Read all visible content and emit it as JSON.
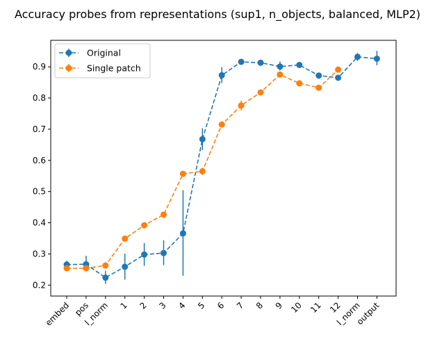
{
  "colors": {
    "original": "#1f77b4",
    "single_patch": "#ff7f0e",
    "axis": "#000000",
    "legend_border": "#cccccc"
  },
  "chart_data": {
    "type": "line",
    "title": "Accuracy probes from representations (sup1, n_objects, balanced, MLP2)",
    "xlabel": "",
    "ylabel": "",
    "categories": [
      "embed",
      "pos",
      "l_norm",
      "1",
      "2",
      "3",
      "4",
      "5",
      "6",
      "7",
      "8",
      "9",
      "10",
      "11",
      "12",
      "l_norm",
      "output"
    ],
    "ylim": [
      0.165,
      0.985
    ],
    "yticks": [
      0.2,
      0.3,
      0.4,
      0.5,
      0.6,
      0.7,
      0.8,
      0.9
    ],
    "ytick_labels": [
      "0.2",
      "0.3",
      "0.4",
      "0.5",
      "0.6",
      "0.7",
      "0.8",
      "0.9"
    ],
    "grid": false,
    "legend_position": "upper-left",
    "series": [
      {
        "name": "Original",
        "color_key": "original",
        "values": [
          0.266,
          0.267,
          0.224,
          0.259,
          0.298,
          0.303,
          0.366,
          0.668,
          0.873,
          0.916,
          0.913,
          0.901,
          0.906,
          0.872,
          0.865,
          0.932,
          0.926
        ],
        "err_low": [
          0.256,
          0.245,
          0.204,
          0.218,
          0.262,
          0.264,
          0.23,
          0.633,
          0.848,
          0.909,
          0.905,
          0.888,
          0.898,
          0.862,
          0.858,
          0.919,
          0.905
        ],
        "err_high": [
          0.278,
          0.294,
          0.246,
          0.301,
          0.335,
          0.344,
          0.504,
          0.703,
          0.899,
          0.922,
          0.92,
          0.917,
          0.913,
          0.88,
          0.872,
          0.944,
          0.951
        ]
      },
      {
        "name": "Single patch",
        "color_key": "single_patch",
        "values": [
          0.254,
          0.254,
          0.263,
          0.349,
          0.392,
          0.426,
          0.557,
          0.565,
          0.715,
          0.776,
          0.818,
          0.875,
          0.847,
          0.833,
          0.891,
          null,
          null
        ],
        "err_low": [
          0.25,
          0.25,
          0.258,
          0.343,
          0.388,
          0.421,
          0.551,
          0.553,
          0.708,
          0.76,
          0.812,
          0.866,
          0.84,
          0.826,
          0.886,
          null,
          null
        ],
        "err_high": [
          0.258,
          0.258,
          0.268,
          0.355,
          0.396,
          0.431,
          0.563,
          0.577,
          0.722,
          0.792,
          0.824,
          0.884,
          0.854,
          0.84,
          0.896,
          null,
          null
        ]
      }
    ]
  }
}
